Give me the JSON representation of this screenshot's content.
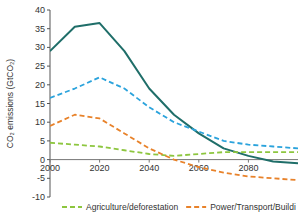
{
  "chart_data": {
    "type": "line",
    "ylabel": "CO₂ emissions (GtCO₂)",
    "x": [
      2000,
      2010,
      2020,
      2030,
      2040,
      2050,
      2060,
      2070,
      2080,
      2090,
      2100
    ],
    "xlim": [
      2000,
      2100
    ],
    "xticks": [
      2000,
      2020,
      2040,
      2060,
      2080
    ],
    "ylim": [
      -10,
      40
    ],
    "yticks": [
      -10,
      -5,
      0,
      5,
      10,
      15,
      20,
      25,
      30,
      35,
      40
    ],
    "legend": "bottom",
    "series": [
      {
        "color": "#1f6e69",
        "line_style": "solid",
        "values": [
          29,
          35.5,
          36.5,
          29,
          19,
          12,
          7,
          3,
          1,
          -0.5,
          -1
        ]
      },
      {
        "color": "#2ba3dc",
        "line_style": "dashed",
        "values": [
          16.5,
          19,
          22,
          19,
          14,
          10,
          7.5,
          5,
          4,
          3.5,
          3
        ]
      },
      {
        "name": "Agriculture/deforestation",
        "color": "#8dc63f",
        "line_style": "dashed",
        "values": [
          4.5,
          4,
          3.5,
          2.5,
          1.5,
          1,
          1.5,
          2,
          2,
          2,
          2
        ]
      },
      {
        "name": "Power/Transport/Buildi",
        "color": "#e8822a",
        "line_style": "dashed",
        "values": [
          9,
          12,
          11,
          7,
          3,
          0,
          -2,
          -3.5,
          -4.5,
          -5,
          -5.5
        ]
      }
    ]
  }
}
